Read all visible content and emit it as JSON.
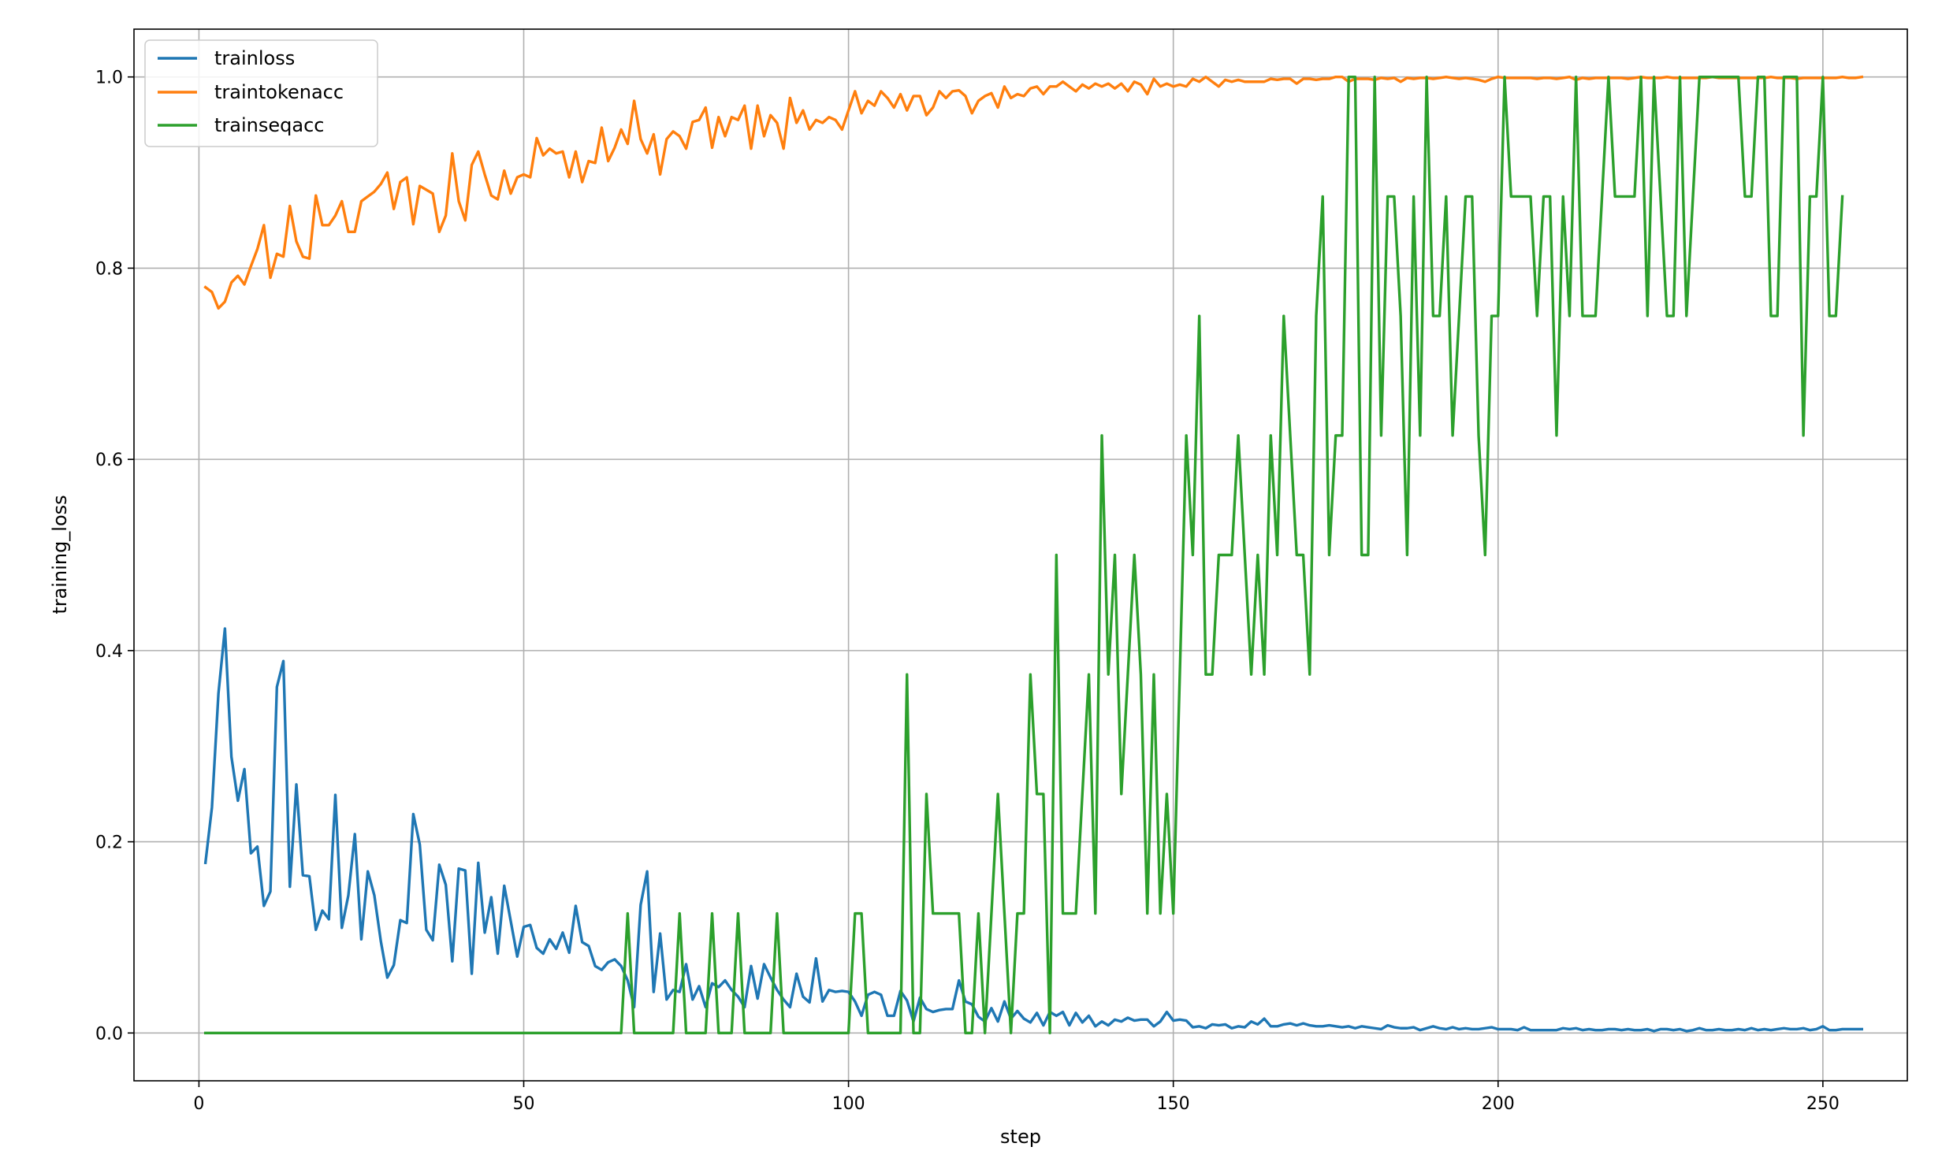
{
  "chart_data": {
    "type": "line",
    "xlabel": "step",
    "ylabel": "training_loss",
    "xlim": [
      -10,
      263
    ],
    "ylim": [
      -0.05,
      1.05
    ],
    "xticks": [
      0,
      50,
      100,
      150,
      200,
      250
    ],
    "yticks": [
      0.0,
      0.2,
      0.4,
      0.6,
      0.8,
      1.0
    ],
    "xtick_labels": [
      "0",
      "50",
      "100",
      "150",
      "200",
      "250"
    ],
    "ytick_labels": [
      "0.0",
      "0.2",
      "0.4",
      "0.6",
      "0.8",
      "1.0"
    ],
    "grid": true,
    "legend_position": "top-left",
    "x_start": 1,
    "series": [
      {
        "name": "trainloss",
        "color": "#1f77b4",
        "values": [
          0.178,
          0.236,
          0.355,
          0.423,
          0.289,
          0.243,
          0.276,
          0.188,
          0.195,
          0.133,
          0.148,
          0.362,
          0.389,
          0.153,
          0.26,
          0.165,
          0.164,
          0.108,
          0.128,
          0.119,
          0.249,
          0.11,
          0.144,
          0.208,
          0.098,
          0.169,
          0.144,
          0.096,
          0.058,
          0.071,
          0.118,
          0.115,
          0.229,
          0.197,
          0.108,
          0.097,
          0.176,
          0.155,
          0.075,
          0.172,
          0.17,
          0.062,
          0.178,
          0.105,
          0.142,
          0.083,
          0.154,
          0.117,
          0.08,
          0.111,
          0.113,
          0.089,
          0.083,
          0.098,
          0.088,
          0.105,
          0.084,
          0.133,
          0.095,
          0.091,
          0.07,
          0.066,
          0.074,
          0.077,
          0.07,
          0.055,
          0.027,
          0.134,
          0.169,
          0.043,
          0.104,
          0.035,
          0.045,
          0.043,
          0.072,
          0.035,
          0.049,
          0.027,
          0.052,
          0.048,
          0.055,
          0.045,
          0.038,
          0.027,
          0.07,
          0.036,
          0.072,
          0.058,
          0.045,
          0.035,
          0.027,
          0.062,
          0.038,
          0.032,
          0.078,
          0.033,
          0.045,
          0.043,
          0.044,
          0.043,
          0.033,
          0.018,
          0.04,
          0.043,
          0.04,
          0.018,
          0.018,
          0.044,
          0.034,
          0.012,
          0.037,
          0.025,
          0.022,
          0.024,
          0.025,
          0.025,
          0.055,
          0.033,
          0.03,
          0.017,
          0.012,
          0.026,
          0.012,
          0.033,
          0.015,
          0.023,
          0.015,
          0.011,
          0.021,
          0.008,
          0.022,
          0.018,
          0.022,
          0.008,
          0.021,
          0.011,
          0.018,
          0.007,
          0.012,
          0.008,
          0.014,
          0.012,
          0.016,
          0.013,
          0.014,
          0.014,
          0.007,
          0.012,
          0.022,
          0.013,
          0.014,
          0.013,
          0.006,
          0.007,
          0.005,
          0.009,
          0.008,
          0.009,
          0.005,
          0.007,
          0.006,
          0.012,
          0.009,
          0.015,
          0.007,
          0.007,
          0.009,
          0.01,
          0.008,
          0.01,
          0.008,
          0.007,
          0.007,
          0.008,
          0.007,
          0.006,
          0.007,
          0.005,
          0.007,
          0.006,
          0.005,
          0.004,
          0.008,
          0.006,
          0.005,
          0.005,
          0.006,
          0.003,
          0.005,
          0.007,
          0.005,
          0.004,
          0.006,
          0.004,
          0.005,
          0.004,
          0.004,
          0.005,
          0.006,
          0.004,
          0.004,
          0.004,
          0.003,
          0.006,
          0.003,
          0.003,
          0.003,
          0.003,
          0.003,
          0.005,
          0.004,
          0.005,
          0.003,
          0.004,
          0.003,
          0.003,
          0.004,
          0.004,
          0.003,
          0.004,
          0.003,
          0.003,
          0.004,
          0.002,
          0.004,
          0.004,
          0.003,
          0.004,
          0.002,
          0.003,
          0.005,
          0.003,
          0.003,
          0.004,
          0.003,
          0.003,
          0.004,
          0.003,
          0.005,
          0.003,
          0.004,
          0.003,
          0.004,
          0.005,
          0.004,
          0.004,
          0.005,
          0.003,
          0.004,
          0.007,
          0.003,
          0.003,
          0.004,
          0.004,
          0.004,
          0.004
        ]
      },
      {
        "name": "traintokenacc",
        "color": "#ff7f0e",
        "values": [
          0.78,
          0.775,
          0.758,
          0.765,
          0.785,
          0.792,
          0.783,
          0.802,
          0.82,
          0.845,
          0.79,
          0.815,
          0.812,
          0.865,
          0.828,
          0.812,
          0.81,
          0.876,
          0.845,
          0.845,
          0.855,
          0.87,
          0.838,
          0.838,
          0.87,
          0.875,
          0.88,
          0.888,
          0.9,
          0.862,
          0.89,
          0.895,
          0.846,
          0.886,
          0.882,
          0.878,
          0.838,
          0.855,
          0.92,
          0.87,
          0.85,
          0.908,
          0.922,
          0.898,
          0.876,
          0.872,
          0.902,
          0.878,
          0.895,
          0.898,
          0.895,
          0.936,
          0.918,
          0.925,
          0.92,
          0.922,
          0.895,
          0.922,
          0.89,
          0.912,
          0.91,
          0.947,
          0.912,
          0.926,
          0.945,
          0.93,
          0.975,
          0.935,
          0.92,
          0.94,
          0.898,
          0.935,
          0.943,
          0.938,
          0.925,
          0.953,
          0.955,
          0.968,
          0.926,
          0.958,
          0.938,
          0.958,
          0.955,
          0.97,
          0.925,
          0.97,
          0.938,
          0.96,
          0.952,
          0.925,
          0.978,
          0.952,
          0.965,
          0.945,
          0.955,
          0.952,
          0.958,
          0.955,
          0.945,
          0.965,
          0.985,
          0.962,
          0.975,
          0.97,
          0.985,
          0.978,
          0.968,
          0.982,
          0.965,
          0.98,
          0.98,
          0.96,
          0.968,
          0.985,
          0.978,
          0.985,
          0.986,
          0.98,
          0.962,
          0.975,
          0.98,
          0.983,
          0.968,
          0.99,
          0.978,
          0.982,
          0.98,
          0.988,
          0.99,
          0.982,
          0.99,
          0.99,
          0.995,
          0.99,
          0.985,
          0.992,
          0.988,
          0.993,
          0.99,
          0.993,
          0.988,
          0.993,
          0.985,
          0.995,
          0.992,
          0.982,
          0.998,
          0.99,
          0.993,
          0.99,
          0.992,
          0.99,
          0.998,
          0.995,
          1.0,
          0.995,
          0.99,
          0.997,
          0.995,
          0.997,
          0.995,
          0.995,
          0.995,
          0.995,
          0.998,
          0.997,
          0.998,
          0.998,
          0.993,
          0.998,
          0.998,
          0.997,
          0.998,
          0.998,
          1.0,
          1.0,
          0.995,
          0.998,
          0.998,
          0.998,
          0.997,
          0.999,
          0.998,
          0.999,
          0.995,
          0.999,
          0.998,
          0.999,
          0.999,
          0.998,
          0.999,
          1.0,
          0.999,
          0.998,
          0.999,
          0.998,
          0.997,
          0.995,
          0.998,
          1.0,
          0.999,
          0.999,
          0.999,
          0.999,
          0.999,
          0.998,
          0.999,
          0.999,
          0.998,
          0.999,
          1.0,
          0.997,
          0.999,
          0.998,
          0.999,
          0.999,
          0.999,
          0.999,
          0.999,
          0.998,
          0.999,
          1.0,
          0.999,
          0.999,
          0.999,
          1.0,
          0.999,
          0.999,
          0.999,
          0.999,
          0.999,
          0.999,
          1.0,
          0.999,
          0.999,
          0.999,
          0.999,
          0.999,
          0.999,
          0.999,
          0.999,
          1.0,
          0.999,
          0.999,
          0.999,
          0.998,
          0.999,
          0.999,
          0.999,
          0.999,
          0.999,
          0.999,
          1.0,
          0.999,
          0.999,
          1.0
        ]
      },
      {
        "name": "trainseqacc",
        "color": "#2ca02c",
        "values": [
          0,
          0,
          0,
          0,
          0,
          0,
          0,
          0,
          0,
          0,
          0,
          0,
          0,
          0,
          0,
          0,
          0,
          0,
          0,
          0,
          0,
          0,
          0,
          0,
          0,
          0,
          0,
          0,
          0,
          0,
          0,
          0,
          0,
          0,
          0,
          0,
          0,
          0,
          0,
          0,
          0,
          0,
          0,
          0,
          0,
          0,
          0,
          0,
          0,
          0,
          0,
          0,
          0,
          0,
          0,
          0,
          0,
          0,
          0,
          0,
          0,
          0,
          0,
          0,
          0,
          0.125,
          0,
          0,
          0,
          0,
          0,
          0,
          0,
          0.125,
          0,
          0,
          0,
          0,
          0.125,
          0,
          0,
          0,
          0.125,
          0,
          0,
          0,
          0,
          0,
          0.125,
          0,
          0,
          0,
          0,
          0,
          0,
          0,
          0,
          0,
          0,
          0,
          0.125,
          0.125,
          0,
          0,
          0,
          0,
          0,
          0,
          0.375,
          0,
          0,
          0.25,
          0.125,
          0.125,
          0.125,
          0.125,
          0.125,
          0,
          0,
          0.125,
          0,
          0.125,
          0.25,
          0.125,
          0,
          0.125,
          0.125,
          0.375,
          0.25,
          0.25,
          0,
          0.5,
          0.125,
          0.125,
          0.125,
          0.25,
          0.375,
          0.125,
          0.625,
          0.375,
          0.5,
          0.25,
          0.375,
          0.5,
          0.375,
          0.125,
          0.375,
          0.125,
          0.25,
          0.125,
          0.375,
          0.625,
          0.5,
          0.75,
          0.375,
          0.375,
          0.5,
          0.5,
          0.5,
          0.625,
          0.5,
          0.375,
          0.5,
          0.375,
          0.625,
          0.5,
          0.75,
          0.625,
          0.5,
          0.5,
          0.375,
          0.75,
          0.875,
          0.5,
          0.625,
          0.625,
          1.0,
          1.0,
          0.5,
          0.5,
          1.0,
          0.625,
          0.875,
          0.875,
          0.75,
          0.5,
          0.875,
          0.625,
          1.0,
          0.75,
          0.75,
          0.875,
          0.625,
          0.75,
          0.875,
          0.875,
          0.625,
          0.5,
          0.75,
          0.75,
          1.0,
          0.875,
          0.875,
          0.875,
          0.875,
          0.75,
          0.875,
          0.875,
          0.625,
          0.875,
          0.75,
          1.0,
          0.75,
          0.75,
          0.75,
          0.875,
          1.0,
          0.875,
          0.875,
          0.875,
          0.875,
          1.0,
          0.75,
          1.0,
          0.875,
          0.75,
          0.75,
          1.0,
          0.75,
          0.875,
          1.0,
          1.0,
          1.0,
          1.0,
          1.0,
          1.0,
          1.0,
          0.875,
          0.875,
          1.0,
          1.0,
          0.75,
          0.75,
          1.0,
          1.0,
          1.0,
          0.625,
          0.875,
          0.875,
          1.0,
          0.75,
          0.75,
          0.875
        ]
      }
    ]
  }
}
